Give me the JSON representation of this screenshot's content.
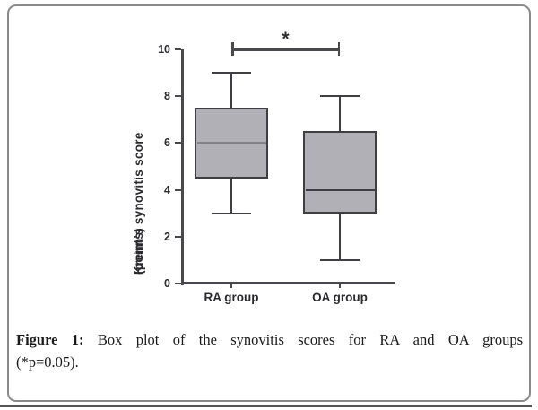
{
  "figure": {
    "caption": {
      "label": "Figure 1:",
      "line1": "Box plot of the synovitis scores for RA and OA groups",
      "line2": "(*p=0.05)."
    }
  },
  "chart_data": {
    "type": "boxplot",
    "title": "",
    "ylabel": "Krenn's synovitis score (points)",
    "ylabel_lines": [
      "Krenn's synovitis score",
      "(points)"
    ],
    "xlabel": "",
    "ylim": [
      0,
      10
    ],
    "yticks": [
      0,
      2,
      4,
      6,
      8,
      10
    ],
    "categories": [
      "RA group",
      "OA group"
    ],
    "series": [
      {
        "name": "RA group",
        "min": 3,
        "q1": 4.5,
        "median": 6,
        "q3": 7.5,
        "max": 9,
        "median_color": "#82818a"
      },
      {
        "name": "OA group",
        "min": 1,
        "q1": 3,
        "median": 4,
        "q3": 6.5,
        "max": 8,
        "median_color": "#3f3e44"
      }
    ],
    "significance": {
      "label": "*",
      "between": [
        "RA group",
        "OA group"
      ],
      "at_value": 10
    },
    "grid": false,
    "legend": "none",
    "colors": {
      "box_fill": "#b1b0b6",
      "box_border": "#3f3e44",
      "axis": "#48484e",
      "text": "#2b2b2f"
    }
  }
}
